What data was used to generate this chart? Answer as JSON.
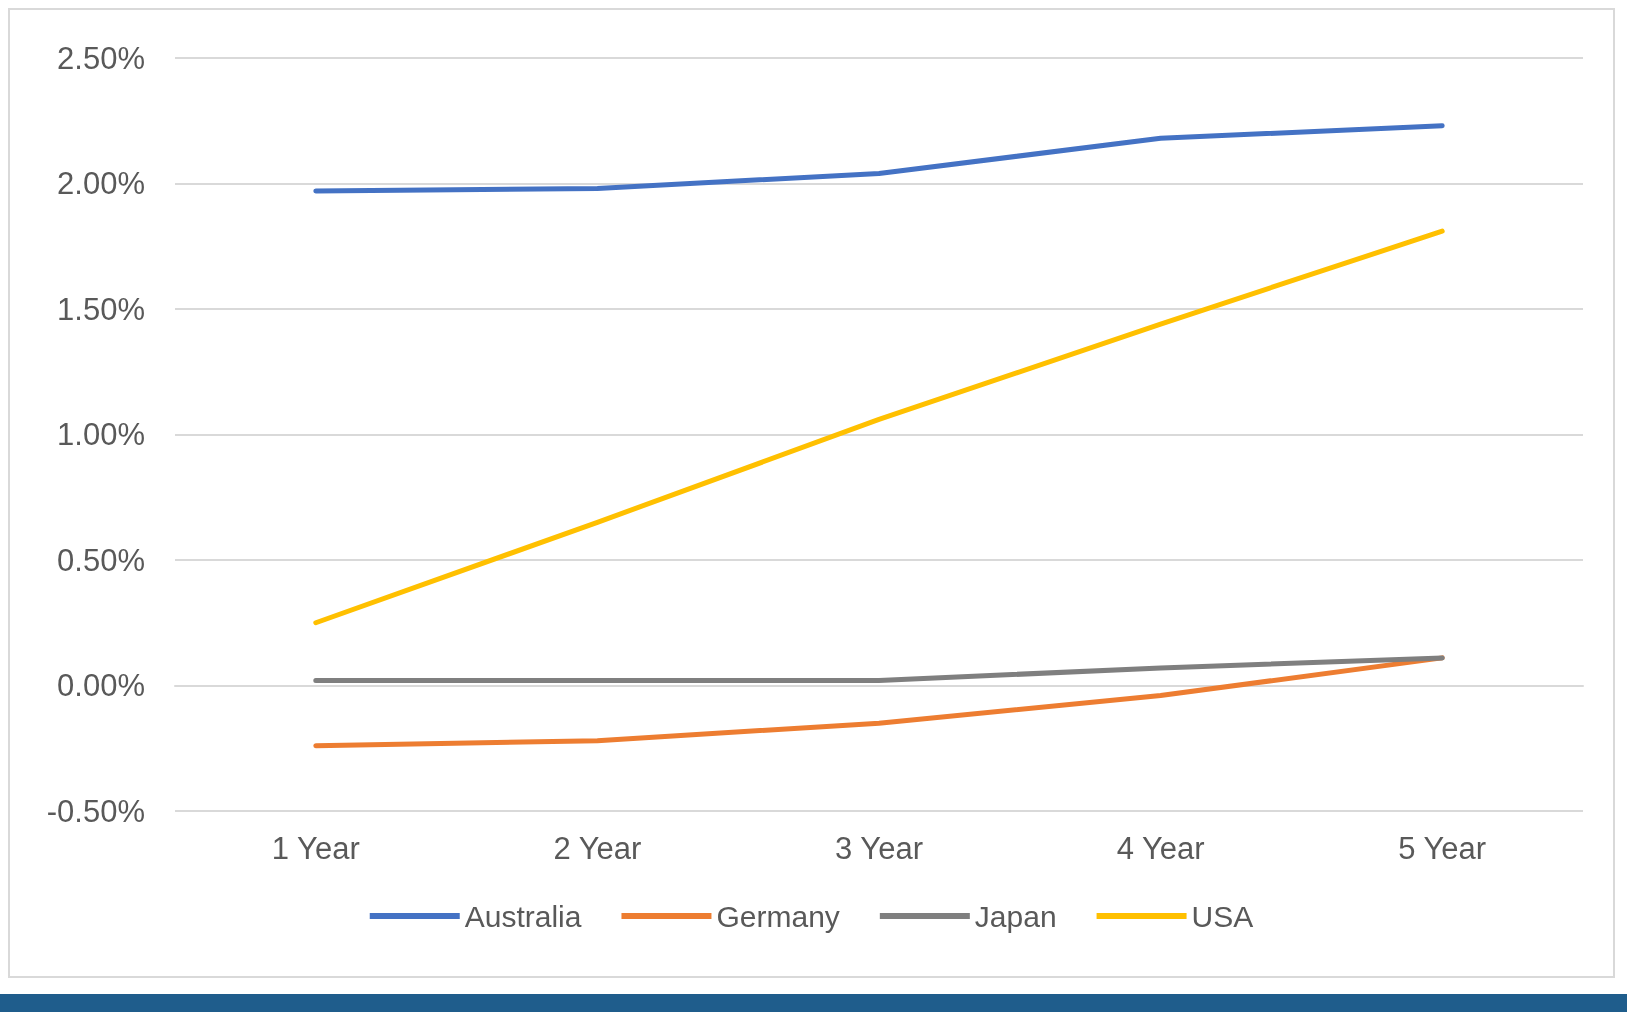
{
  "chart_data": {
    "type": "line",
    "categories": [
      "1 Year",
      "2 Year",
      "3 Year",
      "4 Year",
      "5 Year"
    ],
    "series": [
      {
        "name": "Australia",
        "color": "#4472c4",
        "values": [
          1.97,
          1.98,
          2.04,
          2.18,
          2.23
        ]
      },
      {
        "name": "Germany",
        "color": "#ed7d31",
        "values": [
          -0.24,
          -0.22,
          -0.15,
          -0.04,
          0.11
        ]
      },
      {
        "name": "Japan",
        "color": "#7f7f7f",
        "values": [
          0.02,
          0.02,
          0.02,
          0.07,
          0.11
        ]
      },
      {
        "name": "USA",
        "color": "#ffc000",
        "values": [
          0.25,
          0.65,
          1.06,
          1.44,
          1.81
        ]
      }
    ],
    "ylim": [
      -0.5,
      2.5
    ],
    "yticks": [
      {
        "value": -0.5,
        "label": "-0.50%"
      },
      {
        "value": 0,
        "label": "0.00%"
      },
      {
        "value": 0.5,
        "label": "0.50%"
      },
      {
        "value": 1,
        "label": "1.00%"
      },
      {
        "value": 1.5,
        "label": "1.50%"
      },
      {
        "value": 2,
        "label": "2.00%"
      },
      {
        "value": 2.5,
        "label": "2.50%"
      }
    ],
    "grid": "y",
    "legend": "bottom",
    "marker": "none",
    "line_style": "solid"
  }
}
